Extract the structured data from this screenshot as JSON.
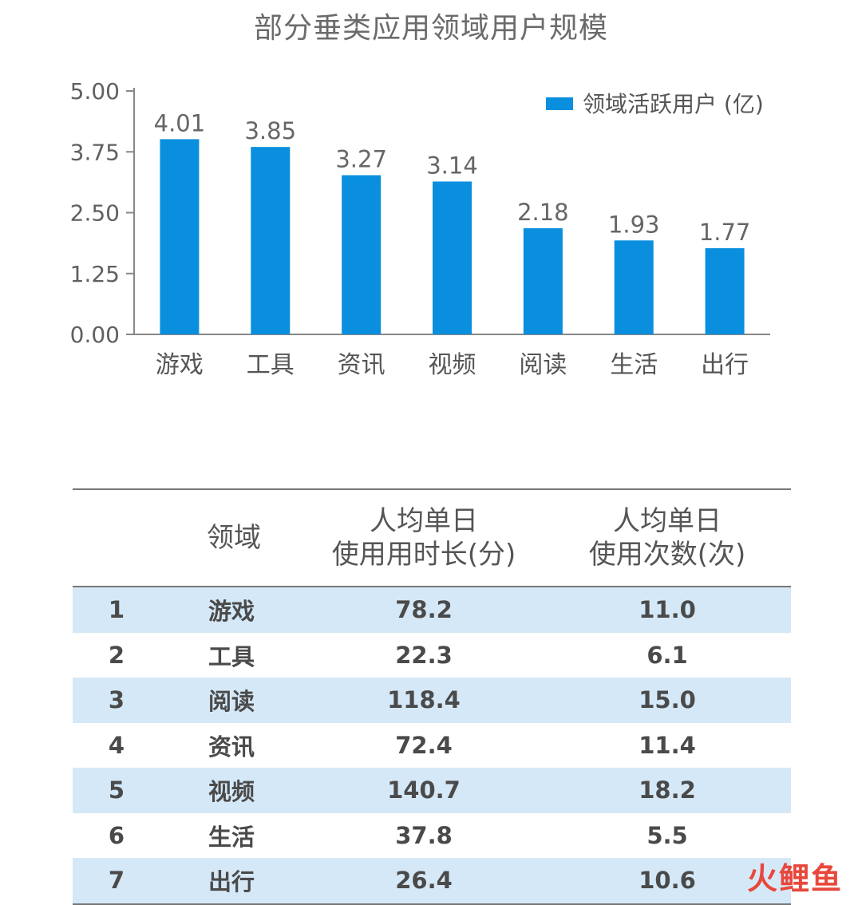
{
  "chart_data": {
    "type": "bar",
    "title": "部分垂类应用领域用户规模",
    "categories": [
      "游戏",
      "工具",
      "资讯",
      "视频",
      "阅读",
      "生活",
      "出行"
    ],
    "series": [
      {
        "name": "领域活跃用户 (亿)",
        "values": [
          4.01,
          3.85,
          3.27,
          3.14,
          2.18,
          1.93,
          1.77
        ]
      }
    ],
    "value_labels": [
      "4.01",
      "3.85",
      "3.27",
      "3.14",
      "2.18",
      "1.93",
      "1.77"
    ],
    "yticks": [
      "0.00",
      "1.25",
      "2.50",
      "3.75",
      "5.00"
    ],
    "ylim": [
      0,
      5
    ],
    "xlabel": "",
    "ylabel": "",
    "legend_position": "top-right",
    "bar_color": "#0a8fdf"
  },
  "table": {
    "headers": {
      "field": "领域",
      "time_line1": "人均单日",
      "time_line2": "使用用时长(分)",
      "count_line1": "人均单日",
      "count_line2": "使用次数(次)"
    },
    "rows": [
      {
        "idx": "1",
        "field": "游戏",
        "time": "78.2",
        "count": "11.0"
      },
      {
        "idx": "2",
        "field": "工具",
        "time": "22.3",
        "count": "6.1"
      },
      {
        "idx": "3",
        "field": "阅读",
        "time": "118.4",
        "count": "15.0"
      },
      {
        "idx": "4",
        "field": "资讯",
        "time": "72.4",
        "count": "11.4"
      },
      {
        "idx": "5",
        "field": "视频",
        "time": "140.7",
        "count": "18.2"
      },
      {
        "idx": "6",
        "field": "生活",
        "time": "37.8",
        "count": "5.5"
      },
      {
        "idx": "7",
        "field": "出行",
        "time": "26.4",
        "count": "10.6"
      }
    ],
    "shade_color": "#d5e8f7"
  },
  "watermark": {
    "part1": "火",
    "part2": "鲤鱼"
  }
}
